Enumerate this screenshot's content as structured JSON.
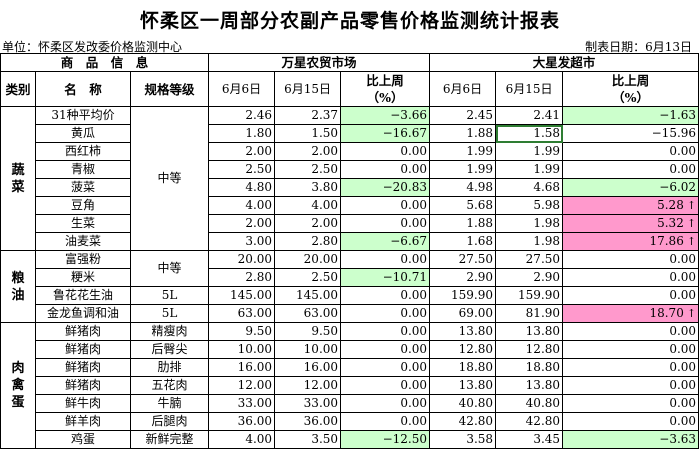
{
  "title": "怀柔区一周部分农副产品零售价格监测统计报表",
  "unit_line": "单位：怀柔区发改委价格监测中心",
  "date_line": "制表日期：6月13日",
  "headers": {
    "product_info": "商　品　信　息",
    "market1": "万星农贸市场",
    "market2": "大星发超市",
    "category": "类别",
    "name": "名　称",
    "spec": "规格等级",
    "date1": "6月6日",
    "date2": "6月15日",
    "change_line1": "比上周",
    "change_line2": "（%）"
  },
  "colors": {
    "up_highlight": "#ff99cc",
    "down_highlight": "#ccffcc"
  },
  "up_arrow": "↑",
  "categories": {
    "veg": "蔬\n菜",
    "grain": "粮\n油",
    "meat": "肉\n禽\n蛋"
  },
  "specs": {
    "medium_veg": "中等",
    "medium_grain": "中等"
  },
  "rows": [
    {
      "name": "31种平均价",
      "spec": "",
      "m1_d1": "2.46",
      "m1_d2": "2.37",
      "m1_chg": "−3.66",
      "m2_d1": "2.45",
      "m2_d2": "2.41",
      "m2_chg": "−1.63"
    },
    {
      "name": "黄瓜",
      "spec": "",
      "m1_d1": "1.80",
      "m1_d2": "1.50",
      "m1_chg": "−16.67",
      "m2_d1": "1.88",
      "m2_d2": "1.58",
      "m2_chg": "−15.96"
    },
    {
      "name": "西红柿",
      "spec": "",
      "m1_d1": "2.00",
      "m1_d2": "2.00",
      "m1_chg": "0.00",
      "m2_d1": "1.99",
      "m2_d2": "1.99",
      "m2_chg": "0.00"
    },
    {
      "name": "青椒",
      "spec": "",
      "m1_d1": "2.50",
      "m1_d2": "2.50",
      "m1_chg": "0.00",
      "m2_d1": "1.99",
      "m2_d2": "1.99",
      "m2_chg": "0.00"
    },
    {
      "name": "菠菜",
      "spec": "",
      "m1_d1": "4.80",
      "m1_d2": "3.80",
      "m1_chg": "−20.83",
      "m2_d1": "4.98",
      "m2_d2": "4.68",
      "m2_chg": "−6.02"
    },
    {
      "name": "豆角",
      "spec": "",
      "m1_d1": "4.00",
      "m1_d2": "4.00",
      "m1_chg": "0.00",
      "m2_d1": "5.68",
      "m2_d2": "5.98",
      "m2_chg": "5.28"
    },
    {
      "name": "生菜",
      "spec": "",
      "m1_d1": "2.00",
      "m1_d2": "2.00",
      "m1_chg": "0.00",
      "m2_d1": "1.88",
      "m2_d2": "1.98",
      "m2_chg": "5.32"
    },
    {
      "name": "油麦菜",
      "spec": "",
      "m1_d1": "3.00",
      "m1_d2": "2.80",
      "m1_chg": "−6.67",
      "m2_d1": "1.68",
      "m2_d2": "1.98",
      "m2_chg": "17.86"
    },
    {
      "name": "富强粉",
      "spec": "",
      "m1_d1": "20.00",
      "m1_d2": "20.00",
      "m1_chg": "0.00",
      "m2_d1": "27.50",
      "m2_d2": "27.50",
      "m2_chg": "0.00"
    },
    {
      "name": "粳米",
      "spec": "",
      "m1_d1": "2.80",
      "m1_d2": "2.50",
      "m1_chg": "−10.71",
      "m2_d1": "2.90",
      "m2_d2": "2.90",
      "m2_chg": "0.00"
    },
    {
      "name": "鲁花花生油",
      "spec": "5L",
      "m1_d1": "145.00",
      "m1_d2": "145.00",
      "m1_chg": "0.00",
      "m2_d1": "159.90",
      "m2_d2": "159.90",
      "m2_chg": "0.00"
    },
    {
      "name": "金龙鱼调和油",
      "spec": "5L",
      "m1_d1": "63.00",
      "m1_d2": "63.00",
      "m1_chg": "0.00",
      "m2_d1": "69.00",
      "m2_d2": "81.90",
      "m2_chg": "18.70"
    },
    {
      "name": "鲜猪肉",
      "spec": "精瘦肉",
      "m1_d1": "9.50",
      "m1_d2": "9.50",
      "m1_chg": "0.00",
      "m2_d1": "13.80",
      "m2_d2": "13.80",
      "m2_chg": "0.00"
    },
    {
      "name": "鲜猪肉",
      "spec": "后臀尖",
      "m1_d1": "10.00",
      "m1_d2": "10.00",
      "m1_chg": "0.00",
      "m2_d1": "12.80",
      "m2_d2": "12.80",
      "m2_chg": "0.00"
    },
    {
      "name": "鲜猪肉",
      "spec": "肋排",
      "m1_d1": "16.00",
      "m1_d2": "16.00",
      "m1_chg": "0.00",
      "m2_d1": "18.80",
      "m2_d2": "18.80",
      "m2_chg": "0.00"
    },
    {
      "name": "鲜猪肉",
      "spec": "五花肉",
      "m1_d1": "12.00",
      "m1_d2": "12.00",
      "m1_chg": "0.00",
      "m2_d1": "13.80",
      "m2_d2": "13.80",
      "m2_chg": "0.00"
    },
    {
      "name": "鲜牛肉",
      "spec": "牛腩",
      "m1_d1": "33.00",
      "m1_d2": "33.00",
      "m1_chg": "0.00",
      "m2_d1": "40.80",
      "m2_d2": "40.80",
      "m2_chg": "0.00"
    },
    {
      "name": "鲜羊肉",
      "spec": "后腿肉",
      "m1_d1": "36.00",
      "m1_d2": "36.00",
      "m1_chg": "0.00",
      "m2_d1": "42.80",
      "m2_d2": "42.80",
      "m2_chg": "0.00"
    },
    {
      "name": "鸡蛋",
      "spec": "新鲜完整",
      "m1_d1": "4.00",
      "m1_d2": "3.50",
      "m1_chg": "−12.50",
      "m2_d1": "3.58",
      "m2_d2": "3.45",
      "m2_chg": "−3.63"
    }
  ]
}
